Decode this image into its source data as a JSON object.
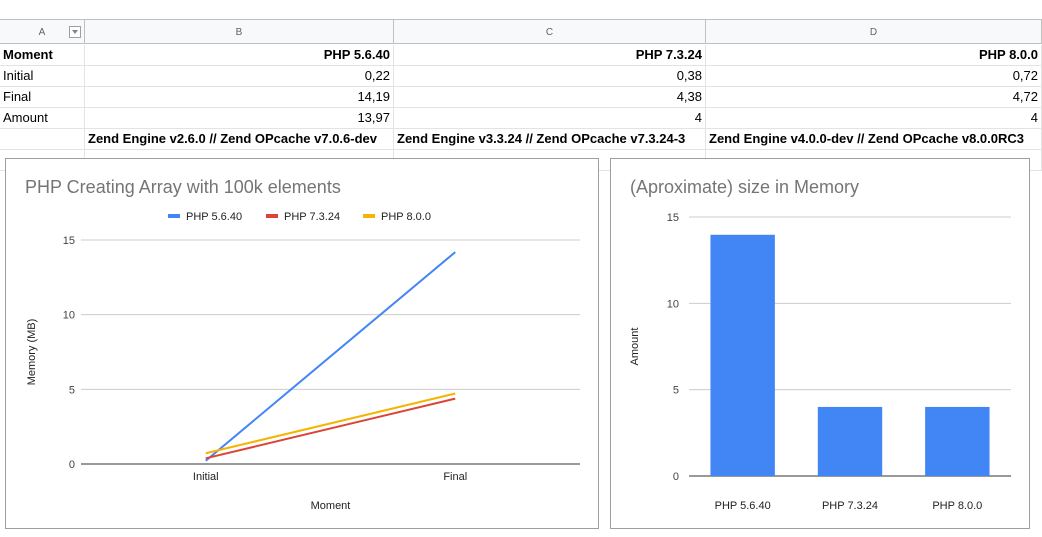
{
  "columns": [
    "A",
    "B",
    "C",
    "D"
  ],
  "rows": [
    {
      "label": "Moment",
      "b": "PHP 5.6.40",
      "c": "PHP 7.3.24",
      "d": "PHP 8.0.0"
    },
    {
      "label": "Initial",
      "b": "0,22",
      "c": "0,38",
      "d": "0,72"
    },
    {
      "label": "Final",
      "b": "14,19",
      "c": "4,38",
      "d": "4,72"
    },
    {
      "label": "Amount",
      "b": "13,97",
      "c": "4",
      "d": "4"
    },
    {
      "label": "",
      "b": "Zend Engine v2.6.0 // Zend OPcache v7.0.6-dev",
      "c": "Zend Engine v3.3.24 // Zend OPcache v7.3.24-3",
      "d": "Zend Engine v4.0.0-dev // Zend OPcache v8.0.0RC3"
    }
  ],
  "colors": {
    "php56": "#4285f4",
    "php73": "#db4437",
    "php80": "#f4b400",
    "bar": "#4285f4",
    "grid": "#cccccc",
    "axis": "#333333"
  },
  "chart_data": [
    {
      "type": "line",
      "title": "PHP Creating Array with 100k elements",
      "xlabel": "Moment",
      "ylabel": "Memory (MB)",
      "categories": [
        "Initial",
        "Final"
      ],
      "series": [
        {
          "name": "PHP 5.6.40",
          "values": [
            0.22,
            14.19
          ]
        },
        {
          "name": "PHP 7.3.24",
          "values": [
            0.38,
            4.38
          ]
        },
        {
          "name": "PHP 8.0.0",
          "values": [
            0.72,
            4.72
          ]
        }
      ],
      "ylim": [
        0,
        15
      ],
      "yticks": [
        "0",
        "5",
        "10",
        "15"
      ],
      "legend": "top",
      "grid": true
    },
    {
      "type": "bar",
      "title": "(Aproximate) size in Memory",
      "xlabel": "",
      "ylabel": "Amount",
      "categories": [
        "PHP 5.6.40",
        "PHP 7.3.24",
        "PHP 8.0.0"
      ],
      "values": [
        13.97,
        4,
        4
      ],
      "ylim": [
        0,
        15
      ],
      "yticks": [
        "0",
        "5",
        "10",
        "15"
      ],
      "legend": "none",
      "grid": true
    }
  ]
}
